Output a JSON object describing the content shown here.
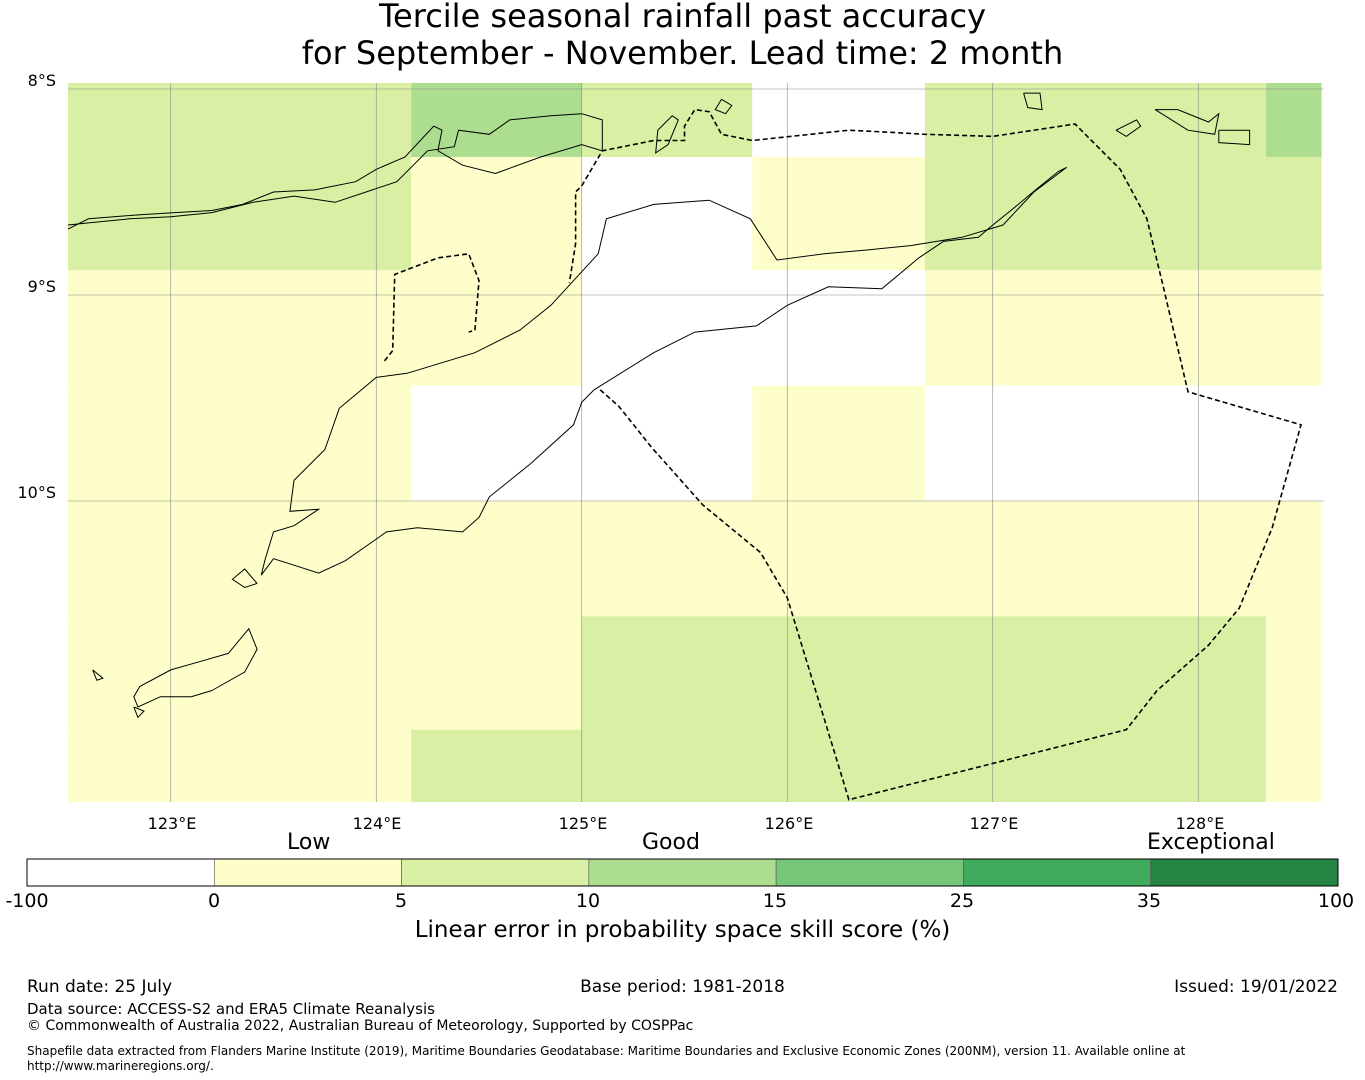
{
  "title": {
    "line1": "Tercile seasonal rainfall past accuracy",
    "line2": "for September - November. Lead time: 2 month"
  },
  "map": {
    "lat_labels": [
      "8°S",
      "9°S",
      "10°S"
    ],
    "lon_labels": [
      "123°E",
      "124°E",
      "125°E",
      "126°E",
      "127°E",
      "128°E"
    ],
    "lat_values": [
      -8,
      -9,
      -10
    ],
    "lon_values": [
      123,
      124,
      125,
      126,
      127,
      128
    ],
    "extent": {
      "lon_min": 122.5,
      "lon_max": 128.6,
      "lat_min": -11.5,
      "lat_max": -7.97
    },
    "grid_cells": [
      {
        "lon": [
          122.5,
          124.17
        ],
        "lat": [
          -8.88,
          -7.97
        ],
        "skill": 7
      },
      {
        "lon": [
          124.17,
          125.0
        ],
        "lat": [
          -8.33,
          -7.97
        ],
        "skill": 12
      },
      {
        "lon": [
          125.0,
          125.83
        ],
        "lat": [
          -8.33,
          -7.97
        ],
        "skill": 7
      },
      {
        "lon": [
          125.83,
          126.67
        ],
        "lat": [
          -8.33,
          -7.97
        ],
        "skill": -5
      },
      {
        "lon": [
          126.67,
          128.33
        ],
        "lat": [
          -8.33,
          -7.97
        ],
        "skill": 7
      },
      {
        "lon": [
          128.33,
          128.6
        ],
        "lat": [
          -8.33,
          -7.97
        ],
        "skill": 12
      },
      {
        "lon": [
          124.17,
          125.0
        ],
        "lat": [
          -8.88,
          -8.33
        ],
        "skill": 3
      },
      {
        "lon": [
          125.0,
          125.83
        ],
        "lat": [
          -8.88,
          -8.33
        ],
        "skill": -5
      },
      {
        "lon": [
          125.83,
          126.67
        ],
        "lat": [
          -8.88,
          -8.33
        ],
        "skill": 3
      },
      {
        "lon": [
          126.67,
          128.6
        ],
        "lat": [
          -8.88,
          -8.33
        ],
        "skill": 7
      },
      {
        "lon": [
          122.5,
          125.0
        ],
        "lat": [
          -9.44,
          -8.88
        ],
        "skill": 3
      },
      {
        "lon": [
          125.0,
          126.67
        ],
        "lat": [
          -9.44,
          -8.88
        ],
        "skill": -5
      },
      {
        "lon": [
          126.67,
          128.6
        ],
        "lat": [
          -9.44,
          -8.88
        ],
        "skill": 3
      },
      {
        "lon": [
          122.5,
          124.17
        ],
        "lat": [
          -10.0,
          -9.44
        ],
        "skill": 3
      },
      {
        "lon": [
          124.17,
          125.83
        ],
        "lat": [
          -10.0,
          -9.44
        ],
        "skill": -5
      },
      {
        "lon": [
          125.83,
          126.67
        ],
        "lat": [
          -10.0,
          -9.44
        ],
        "skill": 3
      },
      {
        "lon": [
          126.67,
          128.6
        ],
        "lat": [
          -10.0,
          -9.44
        ],
        "skill": -5
      },
      {
        "lon": [
          122.5,
          128.6
        ],
        "lat": [
          -10.56,
          -10.0
        ],
        "skill": 3
      },
      {
        "lon": [
          122.5,
          125.0
        ],
        "lat": [
          -11.11,
          -10.56
        ],
        "skill": 3
      },
      {
        "lon": [
          125.0,
          128.33
        ],
        "lat": [
          -11.5,
          -10.56
        ],
        "skill": 7
      },
      {
        "lon": [
          128.33,
          128.6
        ],
        "lat": [
          -11.5,
          -10.56
        ],
        "skill": 3
      },
      {
        "lon": [
          122.5,
          124.17
        ],
        "lat": [
          -11.5,
          -11.11
        ],
        "skill": 3
      },
      {
        "lon": [
          124.17,
          125.0
        ],
        "lat": [
          -11.5,
          -11.11
        ],
        "skill": 7
      }
    ],
    "eez_boundary": [
      [
        125.09,
        -9.46
      ],
      [
        125.18,
        -9.54
      ],
      [
        125.34,
        -9.74
      ],
      [
        125.59,
        -10.02
      ],
      [
        125.87,
        -10.25
      ],
      [
        126.0,
        -10.47
      ],
      [
        126.3,
        -11.45
      ],
      [
        126.5,
        -11.4
      ],
      [
        127.65,
        -11.11
      ],
      [
        127.8,
        -10.92
      ],
      [
        128.05,
        -10.7
      ],
      [
        128.2,
        -10.52
      ],
      [
        128.36,
        -10.13
      ],
      [
        128.5,
        -9.63
      ],
      [
        127.95,
        -9.47
      ],
      [
        127.83,
        -8.96
      ],
      [
        127.75,
        -8.63
      ],
      [
        127.62,
        -8.39
      ],
      [
        127.4,
        -8.17
      ],
      [
        127.0,
        -8.23
      ],
      [
        126.67,
        -8.22
      ],
      [
        126.5,
        -8.21
      ],
      [
        126.3,
        -8.2
      ],
      [
        125.83,
        -8.25
      ],
      [
        125.68,
        -8.22
      ],
      [
        125.62,
        -8.11
      ],
      [
        125.55,
        -8.1
      ],
      [
        125.5,
        -8.18
      ],
      [
        125.5,
        -8.25
      ],
      [
        125.35,
        -8.25
      ],
      [
        125.1,
        -8.3
      ],
      [
        125.0,
        -8.47
      ],
      [
        124.97,
        -8.5
      ],
      [
        124.97,
        -8.75
      ],
      [
        124.94,
        -8.94
      ]
    ],
    "oecusse_boundary": [
      [
        124.04,
        -9.32
      ],
      [
        124.08,
        -9.27
      ],
      [
        124.09,
        -8.9
      ],
      [
        124.3,
        -8.82
      ],
      [
        124.45,
        -8.8
      ],
      [
        124.5,
        -8.93
      ],
      [
        124.48,
        -9.17
      ],
      [
        124.45,
        -9.18
      ]
    ],
    "timor_coast": [
      [
        123.44,
        -10.36
      ],
      [
        123.5,
        -10.28
      ],
      [
        123.72,
        -10.35
      ],
      [
        123.85,
        -10.29
      ],
      [
        124.05,
        -10.15
      ],
      [
        124.2,
        -10.13
      ],
      [
        124.42,
        -10.15
      ],
      [
        124.5,
        -10.08
      ],
      [
        124.55,
        -9.98
      ],
      [
        124.75,
        -9.82
      ],
      [
        124.96,
        -9.63
      ],
      [
        125.0,
        -9.52
      ],
      [
        125.06,
        -9.46
      ],
      [
        125.35,
        -9.28
      ],
      [
        125.55,
        -9.18
      ],
      [
        125.85,
        -9.15
      ],
      [
        126.0,
        -9.05
      ],
      [
        126.2,
        -8.96
      ],
      [
        126.46,
        -8.97
      ],
      [
        126.64,
        -8.82
      ],
      [
        126.76,
        -8.74
      ],
      [
        126.93,
        -8.72
      ],
      [
        127.0,
        -8.66
      ],
      [
        127.1,
        -8.58
      ],
      [
        127.22,
        -8.48
      ],
      [
        127.32,
        -8.4
      ],
      [
        127.36,
        -8.38
      ],
      [
        127.2,
        -8.5
      ],
      [
        127.05,
        -8.66
      ],
      [
        126.85,
        -8.72
      ],
      [
        126.6,
        -8.76
      ],
      [
        126.4,
        -8.78
      ],
      [
        126.18,
        -8.8
      ],
      [
        125.95,
        -8.83
      ],
      [
        125.82,
        -8.63
      ],
      [
        125.62,
        -8.54
      ],
      [
        125.35,
        -8.56
      ],
      [
        125.12,
        -8.63
      ],
      [
        125.08,
        -8.8
      ],
      [
        124.85,
        -9.05
      ],
      [
        124.7,
        -9.17
      ],
      [
        124.48,
        -9.28
      ],
      [
        124.15,
        -9.38
      ],
      [
        124.0,
        -9.4
      ],
      [
        123.82,
        -9.55
      ],
      [
        123.75,
        -9.75
      ],
      [
        123.6,
        -9.9
      ],
      [
        123.58,
        -10.05
      ],
      [
        123.72,
        -10.04
      ],
      [
        123.6,
        -10.12
      ],
      [
        123.5,
        -10.15
      ],
      [
        123.46,
        -10.28
      ],
      [
        123.44,
        -10.36
      ]
    ],
    "land_polygons": [
      [
        [
          122.5,
          -8.68
        ],
        [
          122.6,
          -8.63
        ],
        [
          122.85,
          -8.61
        ],
        [
          123.02,
          -8.6
        ],
        [
          123.2,
          -8.59
        ],
        [
          123.35,
          -8.56
        ],
        [
          123.5,
          -8.5
        ],
        [
          123.7,
          -8.49
        ],
        [
          123.9,
          -8.45
        ],
        [
          124.0,
          -8.39
        ],
        [
          124.14,
          -8.33
        ],
        [
          124.28,
          -8.18
        ],
        [
          124.32,
          -8.2
        ],
        [
          124.3,
          -8.3
        ],
        [
          124.42,
          -8.37
        ],
        [
          124.58,
          -8.41
        ],
        [
          124.8,
          -8.33
        ],
        [
          125.0,
          -8.27
        ],
        [
          125.1,
          -8.3
        ],
        [
          125.1,
          -8.15
        ],
        [
          125.0,
          -8.12
        ],
        [
          124.85,
          -8.13
        ],
        [
          124.65,
          -8.15
        ],
        [
          124.55,
          -8.22
        ],
        [
          124.4,
          -8.2
        ],
        [
          124.38,
          -8.28
        ],
        [
          124.25,
          -8.3
        ],
        [
          124.1,
          -8.45
        ],
        [
          123.95,
          -8.5
        ],
        [
          123.8,
          -8.55
        ],
        [
          123.6,
          -8.52
        ],
        [
          123.4,
          -8.55
        ],
        [
          123.2,
          -8.6
        ],
        [
          123.0,
          -8.62
        ],
        [
          122.8,
          -8.63
        ],
        [
          122.6,
          -8.65
        ],
        [
          122.5,
          -8.66
        ]
      ]
    ],
    "islands": [
      [
        [
          125.37,
          -8.2
        ],
        [
          125.44,
          -8.13
        ],
        [
          125.47,
          -8.15
        ],
        [
          125.42,
          -8.27
        ],
        [
          125.36,
          -8.31
        ],
        [
          125.37,
          -8.2
        ]
      ],
      [
        [
          127.15,
          -8.02
        ],
        [
          127.23,
          -8.02
        ],
        [
          127.24,
          -8.1
        ],
        [
          127.17,
          -8.09
        ],
        [
          127.15,
          -8.02
        ]
      ],
      [
        [
          127.6,
          -8.2
        ],
        [
          127.7,
          -8.15
        ],
        [
          127.72,
          -8.18
        ],
        [
          127.65,
          -8.23
        ],
        [
          127.6,
          -8.2
        ]
      ],
      [
        [
          127.79,
          -8.1
        ],
        [
          127.9,
          -8.1
        ],
        [
          128.05,
          -8.16
        ],
        [
          128.1,
          -8.12
        ],
        [
          128.08,
          -8.22
        ],
        [
          127.95,
          -8.2
        ],
        [
          127.79,
          -8.1
        ]
      ],
      [
        [
          128.1,
          -8.2
        ],
        [
          128.25,
          -8.2
        ],
        [
          128.25,
          -8.27
        ],
        [
          128.1,
          -8.26
        ],
        [
          128.1,
          -8.2
        ]
      ],
      [
        [
          123.2,
          -10.92
        ],
        [
          123.36,
          -10.83
        ],
        [
          123.42,
          -10.72
        ],
        [
          123.38,
          -10.62
        ],
        [
          123.28,
          -10.74
        ],
        [
          123.14,
          -10.78
        ],
        [
          123.0,
          -10.82
        ],
        [
          122.85,
          -10.9
        ],
        [
          122.82,
          -10.95
        ],
        [
          122.84,
          -11.0
        ],
        [
          122.95,
          -10.95
        ],
        [
          123.1,
          -10.95
        ],
        [
          123.2,
          -10.92
        ]
      ],
      [
        [
          123.42,
          -10.4
        ],
        [
          123.36,
          -10.33
        ],
        [
          123.3,
          -10.38
        ],
        [
          123.36,
          -10.42
        ],
        [
          123.42,
          -10.4
        ]
      ],
      [
        [
          122.62,
          -10.82
        ],
        [
          122.67,
          -10.86
        ],
        [
          122.64,
          -10.87
        ],
        [
          122.62,
          -10.82
        ]
      ],
      [
        [
          122.82,
          -11.0
        ],
        [
          122.87,
          -11.02
        ],
        [
          122.84,
          -11.05
        ],
        [
          122.82,
          -11.0
        ]
      ],
      [
        [
          125.68,
          -8.05
        ],
        [
          125.73,
          -8.08
        ],
        [
          125.7,
          -8.12
        ],
        [
          125.65,
          -8.1
        ],
        [
          125.68,
          -8.05
        ]
      ]
    ]
  },
  "colorbar": {
    "category_labels": [
      "Low",
      "Good",
      "Exceptional"
    ],
    "tick_labels": [
      "-100",
      "0",
      "5",
      "10",
      "15",
      "25",
      "35",
      "100"
    ],
    "bins": [
      {
        "from": -100,
        "to": 0,
        "color": "#ffffff"
      },
      {
        "from": 0,
        "to": 5,
        "color": "#fefecb"
      },
      {
        "from": 5,
        "to": 10,
        "color": "#d9efa3"
      },
      {
        "from": 10,
        "to": 15,
        "color": "#addd8e"
      },
      {
        "from": 15,
        "to": 25,
        "color": "#78c679"
      },
      {
        "from": 25,
        "to": 35,
        "color": "#41ab5d"
      },
      {
        "from": 35,
        "to": 100,
        "color": "#238443"
      }
    ],
    "title": "Linear error in probability space skill score (%)"
  },
  "footer": {
    "run_date": "Run date: 25 July",
    "base_period": "Base period: 1981-2018",
    "issued": "Issued: 19/01/2022",
    "data_source": "Data source: ACCESS-S2 and ERA5 Climate Reanalysis",
    "copyright": "© Commonwealth of Australia 2022, Australian Bureau of Meteorology, Supported by COSPPac",
    "shapefile_line1": "Shapefile data extracted from Flanders Marine Institute (2019), Maritime Boundaries Geodatabase: Maritime Boundaries and Exclusive Economic Zones (200NM), version 11. Available online at",
    "shapefile_line2": "http://www.marineregions.org/."
  }
}
